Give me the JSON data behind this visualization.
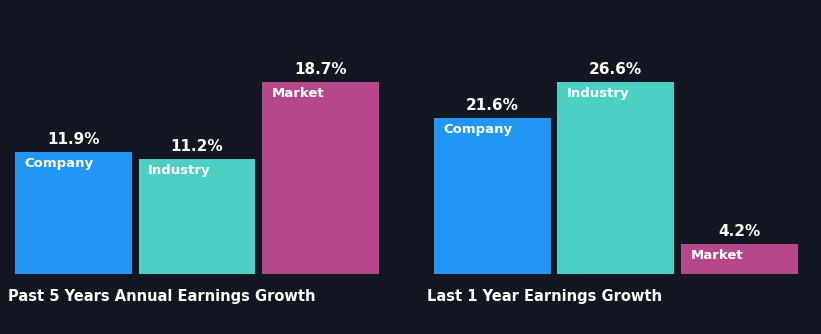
{
  "background_color": "#131722",
  "group1": {
    "title": "Past 5 Years Annual Earnings Growth",
    "bars": [
      {
        "label": "Company",
        "value": 11.9,
        "color": "#2196f3"
      },
      {
        "label": "Industry",
        "value": 11.2,
        "color": "#4dd0c4"
      },
      {
        "label": "Market",
        "value": 18.7,
        "color": "#b5478a"
      }
    ]
  },
  "group2": {
    "title": "Last 1 Year Earnings Growth",
    "bars": [
      {
        "label": "Company",
        "value": 21.6,
        "color": "#2196f3"
      },
      {
        "label": "Industry",
        "value": 26.6,
        "color": "#4dd0c4"
      },
      {
        "label": "Market",
        "value": 4.2,
        "color": "#b5478a"
      }
    ]
  },
  "text_color": "#ffffff",
  "label_fontsize": 9.5,
  "value_fontsize": 11,
  "title_fontsize": 10.5,
  "bar_width": 0.85,
  "bar_gap": 0.05
}
